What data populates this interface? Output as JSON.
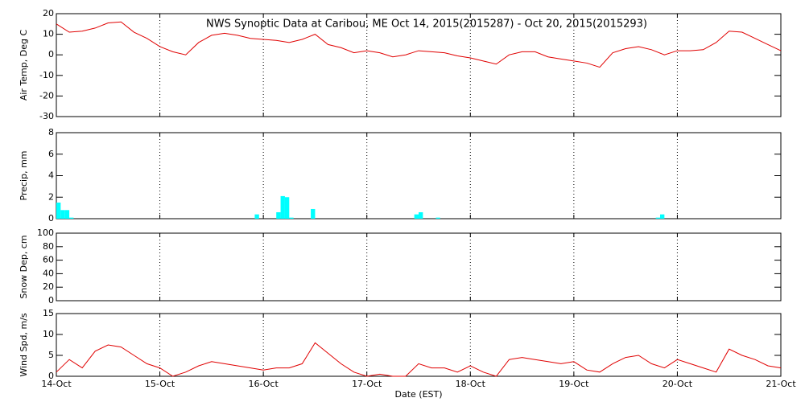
{
  "chart_data": [
    {
      "type": "line",
      "title": "NWS Synoptic Data at Caribou, ME   Oct 14, 2015(2015287) - Oct 20, 2015(2015293)",
      "ylabel": "Air Temp, Deg C",
      "x": [
        14,
        14.125,
        14.25,
        14.375,
        14.5,
        14.625,
        14.75,
        14.875,
        15,
        15.125,
        15.25,
        15.375,
        15.5,
        15.625,
        15.75,
        15.875,
        16,
        16.125,
        16.25,
        16.375,
        16.5,
        16.625,
        16.75,
        16.875,
        17,
        17.125,
        17.25,
        17.375,
        17.5,
        17.625,
        17.75,
        17.875,
        18,
        18.125,
        18.25,
        18.375,
        18.5,
        18.625,
        18.75,
        18.875,
        19,
        19.125,
        19.25,
        19.375,
        19.5,
        19.625,
        19.75,
        19.875,
        20,
        20.125,
        20.25,
        20.375,
        20.5,
        20.625,
        20.75,
        20.875,
        21
      ],
      "series": [
        {
          "color": "#e00000",
          "values": [
            15,
            11,
            11.5,
            13,
            15.5,
            16,
            11,
            8,
            4,
            1.5,
            0,
            6,
            9.5,
            10.5,
            9.5,
            8,
            7.5,
            7,
            6,
            7.5,
            10,
            5,
            3.5,
            1,
            2,
            1,
            -1,
            0,
            2,
            1.5,
            1,
            -0.5,
            -1.5,
            -3,
            -4.5,
            0,
            1.5,
            1.5,
            -1,
            -2,
            -3,
            -4,
            -6,
            1,
            3,
            4,
            2.5,
            0,
            2,
            2,
            2.5,
            6,
            11.5,
            11,
            8,
            5,
            2
          ]
        }
      ],
      "xlim": [
        14,
        21
      ],
      "xticks": [
        14,
        15,
        16,
        17,
        18,
        19,
        20,
        21
      ],
      "ylim": [
        -30,
        20
      ],
      "yticks": [
        -30,
        -20,
        -10,
        0,
        10,
        20
      ],
      "grid": "x"
    },
    {
      "type": "bar",
      "ylabel": "Precip, mm",
      "x": [
        14,
        14.0417,
        14.0833,
        14.125,
        15.9167,
        16.125,
        16.1667,
        16.2083,
        16.25,
        16.4583,
        17.4583,
        17.5,
        17.6667,
        19.7917,
        19.8333
      ],
      "series": [
        {
          "color": "#00ffff",
          "values": [
            1.5,
            0.8,
            0.8,
            0.1,
            0.4,
            0.6,
            2.1,
            2.0,
            0.1,
            0.9,
            0.4,
            0.6,
            0.1,
            0.1,
            0.4
          ]
        }
      ],
      "xlim": [
        14,
        21
      ],
      "xticks": [
        14,
        15,
        16,
        17,
        18,
        19,
        20,
        21
      ],
      "ylim": [
        0,
        8
      ],
      "yticks": [
        0,
        2,
        4,
        6,
        8
      ],
      "grid": "x"
    },
    {
      "type": "line",
      "ylabel": "Snow Dep, cm",
      "xlim": [
        14,
        21
      ],
      "xticks": [
        14,
        15,
        16,
        17,
        18,
        19,
        20,
        21
      ],
      "ylim": [
        0,
        100
      ],
      "yticks": [
        0,
        20,
        40,
        60,
        80,
        100
      ],
      "grid": "x"
    },
    {
      "type": "line",
      "ylabel": "Wind Spd, m/s",
      "xlabel": "Date (EST)",
      "x": [
        14,
        14.125,
        14.25,
        14.375,
        14.5,
        14.625,
        14.75,
        14.875,
        15,
        15.125,
        15.25,
        15.375,
        15.5,
        15.625,
        15.75,
        15.875,
        16,
        16.125,
        16.25,
        16.375,
        16.5,
        16.625,
        16.75,
        16.875,
        17,
        17.125,
        17.25,
        17.375,
        17.5,
        17.625,
        17.75,
        17.875,
        18,
        18.125,
        18.25,
        18.375,
        18.5,
        18.625,
        18.75,
        18.875,
        19,
        19.125,
        19.25,
        19.375,
        19.5,
        19.625,
        19.75,
        19.875,
        20,
        20.125,
        20.25,
        20.375,
        20.5,
        20.625,
        20.75,
        20.875,
        21
      ],
      "series": [
        {
          "color": "#e00000",
          "values": [
            1,
            4,
            2,
            6,
            7.5,
            7,
            5,
            3,
            2,
            0,
            1,
            2.5,
            3.5,
            3,
            2.5,
            2,
            1.5,
            2,
            2,
            3,
            8,
            5.5,
            3,
            1,
            0,
            0.5,
            0,
            0,
            3,
            2,
            2,
            1,
            2.5,
            1,
            0,
            4,
            4.5,
            4,
            3.5,
            3,
            3.5,
            1.5,
            1,
            3,
            4.5,
            5,
            3,
            2,
            4,
            3,
            2,
            1,
            6.5,
            5,
            4,
            2.5,
            2
          ]
        }
      ],
      "xlim": [
        14,
        21
      ],
      "xticks": [
        {
          "value": 14,
          "label": "14-Oct"
        },
        {
          "value": 15,
          "label": "15-Oct"
        },
        {
          "value": 16,
          "label": "16-Oct"
        },
        {
          "value": 17,
          "label": "17-Oct"
        },
        {
          "value": 18,
          "label": "18-Oct"
        },
        {
          "value": 19,
          "label": "19-Oct"
        },
        {
          "value": 20,
          "label": "20-Oct"
        },
        {
          "value": 21,
          "label": "21-Oct"
        }
      ],
      "ylim": [
        0,
        15
      ],
      "yticks": [
        0,
        5,
        10,
        15
      ],
      "grid": "x"
    }
  ]
}
